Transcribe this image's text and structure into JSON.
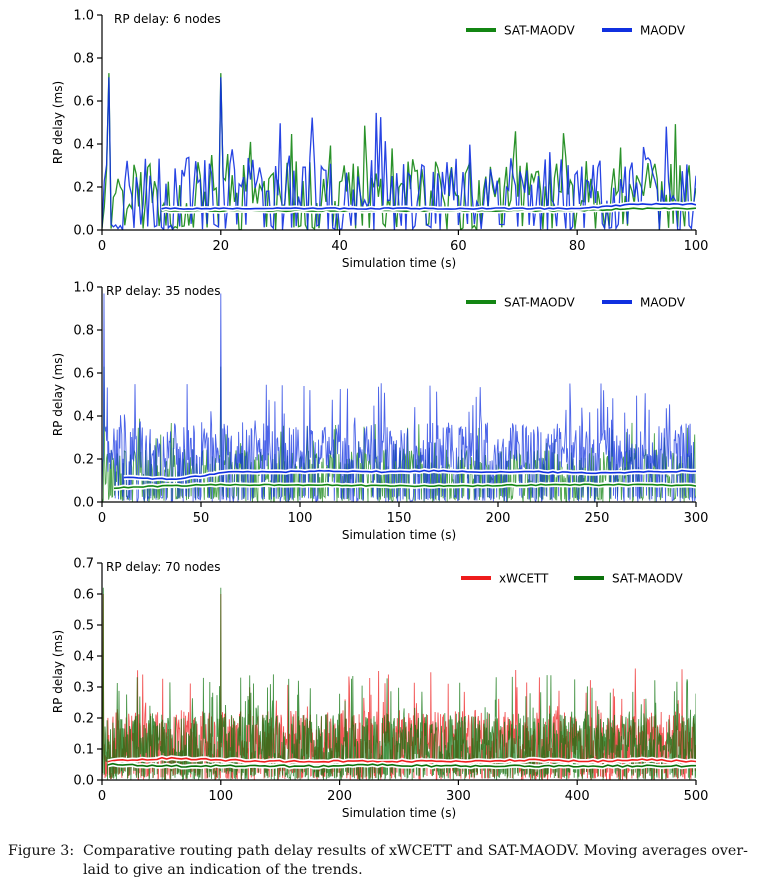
{
  "caption": {
    "label": "Figure 3:",
    "text": "Comparative routing path delay results of xWCETT and SAT-MAODV. Moving averages over-laid to give an indication of the trends."
  },
  "chart_data": [
    {
      "type": "line",
      "title": "RP delay: 6 nodes",
      "xlabel": "Simulation time (s)",
      "ylabel": "RP delay (ms)",
      "xlim": [
        0,
        100
      ],
      "ylim": [
        0,
        1.0
      ],
      "xticks": [
        "0",
        "20",
        "40",
        "60",
        "80",
        "100"
      ],
      "yticks": [
        "0.0",
        "0.2",
        "0.4",
        "0.6",
        "0.8",
        "1.0"
      ],
      "grid": false,
      "legend_position": "top-right",
      "series": [
        {
          "name": "SAT-MAODV",
          "color": "#138613",
          "noise": {
            "samples": 260,
            "base": 0.09,
            "spread": 0.42,
            "max": 0.73,
            "seed": 11
          },
          "moving_average": {
            "start": 10,
            "values": [
              0.09,
              0.09,
              0.09,
              0.09,
              0.09,
              0.09,
              0.09,
              0.09,
              0.1,
              0.1
            ]
          }
        },
        {
          "name": "MAODV",
          "color": "#1030e0",
          "noise": {
            "samples": 260,
            "base": 0.1,
            "spread": 0.45,
            "max": 0.71,
            "seed": 23
          },
          "moving_average": {
            "start": 10,
            "values": [
              0.1,
              0.1,
              0.1,
              0.1,
              0.1,
              0.1,
              0.1,
              0.1,
              0.12,
              0.12
            ]
          }
        }
      ],
      "draw_order": [
        "SAT-MAODV",
        "MAODV"
      ]
    },
    {
      "type": "line",
      "title": "RP delay: 35 nodes",
      "xlabel": "Simulation time (s)",
      "ylabel": "RP delay (ms)",
      "xlim": [
        0,
        300
      ],
      "ylim": [
        0,
        1.0
      ],
      "xticks": [
        "0",
        "50",
        "100",
        "150",
        "200",
        "250",
        "300"
      ],
      "yticks": [
        "0.0",
        "0.2",
        "0.4",
        "0.6",
        "0.8",
        "1.0"
      ],
      "grid": false,
      "legend_position": "top-right",
      "series": [
        {
          "name": "SAT-MAODV",
          "color": "#138613",
          "noise": {
            "samples": 900,
            "base": 0.07,
            "spread": 0.32,
            "max": 0.63,
            "seed": 37
          },
          "moving_average": {
            "start": 6,
            "values": [
              0.065,
              0.075,
              0.08,
              0.08,
              0.08,
              0.075,
              0.075,
              0.075,
              0.08,
              0.08,
              0.08,
              0.075
            ]
          }
        },
        {
          "name": "MAODV",
          "color": "#1030e0",
          "noise": {
            "samples": 900,
            "base": 0.14,
            "spread": 0.42,
            "max": 0.97,
            "seed": 41
          },
          "moving_average": {
            "start": 11,
            "values": [
              0.115,
              0.105,
              0.14,
              0.14,
              0.145,
              0.14,
              0.145,
              0.14,
              0.14,
              0.135,
              0.14,
              0.145
            ]
          }
        }
      ],
      "draw_order": [
        "SAT-MAODV",
        "MAODV"
      ]
    },
    {
      "type": "line",
      "title": "RP delay: 70 nodes",
      "xlabel": "Simulation time (s)",
      "ylabel": "RP delay (ms)",
      "xlim": [
        0,
        500
      ],
      "ylim": [
        0,
        0.7
      ],
      "xticks": [
        "0",
        "100",
        "200",
        "300",
        "400",
        "500"
      ],
      "yticks": [
        "0.0",
        "0.1",
        "0.2",
        "0.3",
        "0.4",
        "0.5",
        "0.6",
        "0.7"
      ],
      "grid": false,
      "legend_position": "top-right",
      "series": [
        {
          "name": "xWCETT",
          "color": "#ee1c1c",
          "noise": {
            "samples": 1400,
            "base": 0.06,
            "spread": 0.3,
            "max": 0.6,
            "seed": 53
          },
          "moving_average": {
            "start": 5,
            "values": [
              0.06,
              0.07,
              0.065,
              0.06,
              0.06,
              0.06,
              0.06,
              0.06,
              0.065,
              0.06,
              0.065,
              0.06
            ]
          }
        },
        {
          "name": "SAT-MAODV",
          "color": "#0b720b",
          "noise": {
            "samples": 1400,
            "base": 0.05,
            "spread": 0.3,
            "max": 0.62,
            "seed": 67
          },
          "moving_average": {
            "start": 5,
            "values": [
              0.05,
              0.045,
              0.045,
              0.045,
              0.045,
              0.05,
              0.045,
              0.045,
              0.045,
              0.045,
              0.045,
              0.045
            ]
          }
        }
      ],
      "draw_order": [
        "xWCETT",
        "SAT-MAODV"
      ]
    }
  ]
}
